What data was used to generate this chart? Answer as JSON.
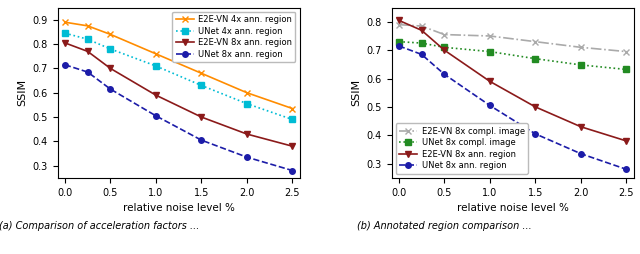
{
  "x": [
    0.0,
    0.25,
    0.5,
    1.0,
    1.5,
    2.0,
    2.5
  ],
  "left": {
    "e2evn_4x": [
      0.89,
      0.875,
      0.84,
      0.76,
      0.68,
      0.6,
      0.535
    ],
    "unet_4x": [
      0.845,
      0.82,
      0.78,
      0.71,
      0.63,
      0.555,
      0.49
    ],
    "e2evn_8x": [
      0.805,
      0.77,
      0.7,
      0.59,
      0.5,
      0.43,
      0.38
    ],
    "unet_8x": [
      0.715,
      0.685,
      0.615,
      0.505,
      0.405,
      0.335,
      0.28
    ]
  },
  "right": {
    "e2evn_8x_compl": [
      0.79,
      0.785,
      0.755,
      0.75,
      0.73,
      0.71,
      0.695
    ],
    "unet_8x_compl": [
      0.73,
      0.725,
      0.71,
      0.695,
      0.67,
      0.648,
      0.632
    ],
    "e2evn_8x_ann": [
      0.805,
      0.77,
      0.7,
      0.59,
      0.5,
      0.43,
      0.38
    ],
    "unet_8x_ann": [
      0.715,
      0.685,
      0.615,
      0.505,
      0.405,
      0.335,
      0.28
    ]
  },
  "xlabel": "relative noise level %",
  "ylabel": "SSIM",
  "left_ylim": [
    0.25,
    0.95
  ],
  "right_ylim": [
    0.25,
    0.85
  ],
  "left_yticks": [
    0.3,
    0.4,
    0.5,
    0.6,
    0.7,
    0.8,
    0.9
  ],
  "right_yticks": [
    0.3,
    0.4,
    0.5,
    0.6,
    0.7,
    0.8
  ],
  "xticks": [
    0.0,
    0.5,
    1.0,
    1.5,
    2.0,
    2.5
  ],
  "caption_a": "(a) Comparison of acceleration factors ...",
  "caption_b": "(b) Annotated region comparison ...",
  "left_lines": [
    {
      "label": "E2E-VN 4x ann. region",
      "color": "#ff8c00",
      "linestyle": "-",
      "marker": "x",
      "ms": 5
    },
    {
      "label": "UNet 4x ann. region",
      "color": "#00bcd4",
      "linestyle": ":",
      "marker": "s",
      "ms": 4
    },
    {
      "label": "E2E-VN 8x ann. region",
      "color": "#8b1a1a",
      "linestyle": "-",
      "marker": "v",
      "ms": 5
    },
    {
      "label": "UNet 8x ann. region",
      "color": "#1c1ca8",
      "linestyle": "--",
      "marker": "o",
      "ms": 4
    }
  ],
  "right_lines": [
    {
      "label": "E2E-VN 8x compl. image",
      "color": "#aaaaaa",
      "linestyle": "-.",
      "marker": "x",
      "ms": 5
    },
    {
      "label": "UNet 8x compl. image",
      "color": "#228b22",
      "linestyle": ":",
      "marker": "s",
      "ms": 4
    },
    {
      "label": "E2E-VN 8x ann. region",
      "color": "#8b1a1a",
      "linestyle": "-",
      "marker": "v",
      "ms": 5
    },
    {
      "label": "UNet 8x ann. region",
      "color": "#1c1ca8",
      "linestyle": "--",
      "marker": "o",
      "ms": 4
    }
  ],
  "left_keys": [
    "e2evn_4x",
    "unet_4x",
    "e2evn_8x",
    "unet_8x"
  ],
  "right_keys": [
    "e2evn_8x_compl",
    "unet_8x_compl",
    "e2evn_8x_ann",
    "unet_8x_ann"
  ]
}
